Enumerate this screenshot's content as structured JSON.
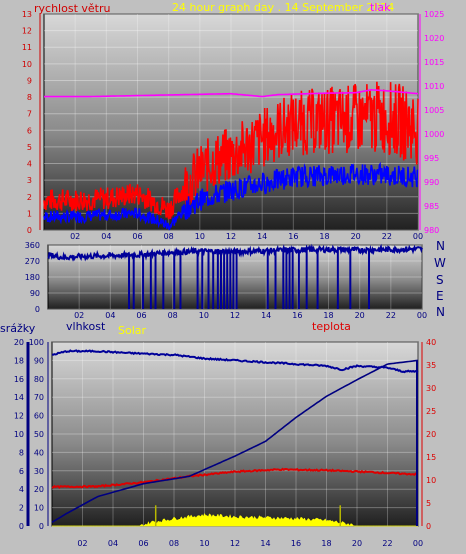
{
  "header": {
    "title": "24 hour graph day . 14 September 2024",
    "left_label": "rychlost větru",
    "right_label": "tlak"
  },
  "middle": {
    "compass": [
      "N",
      "W",
      "S",
      "E",
      "N"
    ]
  },
  "bottom_header": {
    "rain_label": "srážky",
    "humidity_label": "vlhkost",
    "solar_label": "Solar",
    "temp_label": "teplota"
  },
  "colors": {
    "wind_gust": "#ff0000",
    "wind_avg": "#0000ff",
    "pressure": "#ff00ff",
    "direction": "#000099",
    "humidity": "#000099",
    "temperature": "#dd0000",
    "rain": "#000080",
    "solar": "#ffff00",
    "title": "#ffff00"
  },
  "chart_data": [
    {
      "type": "line",
      "name": "wind-pressure",
      "x_ticks": [
        "02",
        "04",
        "06",
        "08",
        "10",
        "12",
        "14",
        "16",
        "18",
        "20",
        "22",
        "00"
      ],
      "left_ticks": [
        "0",
        "1",
        "2",
        "3",
        "4",
        "5",
        "6",
        "7",
        "8",
        "9",
        "10",
        "11",
        "12",
        "13"
      ],
      "right_ticks": [
        "980",
        "985",
        "990",
        "995",
        "1000",
        "1005",
        "1010",
        "1015",
        "1020",
        "1025"
      ],
      "ylim_left": [
        0,
        13
      ],
      "ylim_right": [
        980,
        1025
      ],
      "gust_anchors": [
        [
          0,
          1.8
        ],
        [
          2,
          1.8
        ],
        [
          4,
          1.9
        ],
        [
          6,
          2.2
        ],
        [
          7.5,
          1.5
        ],
        [
          8,
          1.2
        ],
        [
          9,
          2.6
        ],
        [
          10,
          3.5
        ],
        [
          11,
          4.2
        ],
        [
          12,
          4.5
        ],
        [
          13,
          5.0
        ],
        [
          14,
          5.5
        ],
        [
          15,
          6.0
        ],
        [
          16,
          6.4
        ],
        [
          18,
          6.6
        ],
        [
          20,
          6.7
        ],
        [
          22,
          6.8
        ],
        [
          24,
          6.2
        ]
      ],
      "avg_anchors": [
        [
          0,
          0.8
        ],
        [
          2,
          0.8
        ],
        [
          4,
          0.9
        ],
        [
          6,
          1.0
        ],
        [
          7.5,
          0.5
        ],
        [
          8,
          0.2
        ],
        [
          9,
          1.2
        ],
        [
          10,
          1.8
        ],
        [
          11,
          2.1
        ],
        [
          12,
          2.4
        ],
        [
          13,
          2.6
        ],
        [
          14,
          2.8
        ],
        [
          15,
          3.0
        ],
        [
          16,
          3.2
        ],
        [
          18,
          3.3
        ],
        [
          20,
          3.4
        ],
        [
          22,
          3.3
        ],
        [
          24,
          3.2
        ]
      ],
      "pressure_anchors": [
        [
          0,
          1007.8
        ],
        [
          3,
          1007.8
        ],
        [
          6,
          1008.0
        ],
        [
          9,
          1008.2
        ],
        [
          12,
          1008.4
        ],
        [
          14,
          1007.8
        ],
        [
          15,
          1008.2
        ],
        [
          18,
          1008.5
        ],
        [
          20,
          1008.6
        ],
        [
          21,
          1009.2
        ],
        [
          22,
          1009.0
        ],
        [
          24,
          1008.4
        ]
      ]
    },
    {
      "type": "line",
      "name": "wind-direction",
      "x_ticks": [
        "02",
        "04",
        "06",
        "08",
        "10",
        "12",
        "14",
        "16",
        "18",
        "20",
        "22",
        "00"
      ],
      "y_ticks": [
        "0",
        "90",
        "180",
        "270",
        "360"
      ],
      "ylim": [
        0,
        360
      ],
      "base_anchors": [
        [
          0,
          305
        ],
        [
          1,
          290
        ],
        [
          2,
          295
        ],
        [
          4,
          300
        ],
        [
          6,
          305
        ],
        [
          8,
          320
        ],
        [
          10,
          325
        ],
        [
          12,
          322
        ],
        [
          14,
          328
        ],
        [
          16,
          332
        ],
        [
          18,
          335
        ],
        [
          20,
          332
        ],
        [
          22,
          335
        ],
        [
          24,
          338
        ]
      ],
      "drops": [
        5.2,
        5.5,
        6.1,
        6.6,
        6.9,
        7.4,
        8.1,
        8.5,
        9.6,
        9.9,
        10.3,
        10.6,
        10.9,
        11.1,
        11.3,
        11.5,
        11.7,
        11.9,
        12.1,
        14.1,
        14.6,
        15.1,
        15.3,
        15.5,
        15.7,
        16.1,
        16.6,
        17.3,
        18.6,
        19.4,
        20.6
      ]
    },
    {
      "type": "line",
      "name": "humidity-temperature-rain-solar",
      "x_ticks": [
        "02",
        "04",
        "06",
        "08",
        "10",
        "12",
        "14",
        "16",
        "18",
        "20",
        "22",
        "00"
      ],
      "left_ticks": [
        "0",
        "10",
        "20",
        "30",
        "40",
        "50",
        "60",
        "70",
        "80",
        "90",
        "100"
      ],
      "rain_ticks": [
        "0",
        "2",
        "4",
        "6",
        "8",
        "10",
        "12",
        "14",
        "16",
        "18",
        "20"
      ],
      "right_ticks": [
        "0",
        "5",
        "10",
        "15",
        "20",
        "25",
        "30",
        "35",
        "40"
      ],
      "ylim_left": [
        0,
        100
      ],
      "ylim_right": [
        0,
        40
      ],
      "humidity_anchors": [
        [
          0,
          93
        ],
        [
          1,
          95
        ],
        [
          3,
          95
        ],
        [
          5,
          94
        ],
        [
          8,
          93
        ],
        [
          10,
          91
        ],
        [
          12,
          90
        ],
        [
          14,
          89
        ],
        [
          16,
          88
        ],
        [
          18,
          87
        ],
        [
          19,
          85
        ],
        [
          20,
          87
        ],
        [
          22,
          86
        ],
        [
          23,
          84
        ],
        [
          24,
          84
        ]
      ],
      "temperature_anchors": [
        [
          0,
          8.5
        ],
        [
          3,
          8.6
        ],
        [
          6,
          9.5
        ],
        [
          9,
          10.8
        ],
        [
          12,
          11.8
        ],
        [
          15,
          12.3
        ],
        [
          18,
          12.1
        ],
        [
          21,
          11.7
        ],
        [
          24,
          11.2
        ]
      ],
      "rain_anchors": [
        [
          0,
          0.4
        ],
        [
          1,
          1.4
        ],
        [
          3,
          3.2
        ],
        [
          6,
          4.6
        ],
        [
          9,
          5.4
        ],
        [
          12,
          7.6
        ],
        [
          14,
          9.2
        ],
        [
          16,
          11.8
        ],
        [
          18,
          14.1
        ],
        [
          20,
          15.9
        ],
        [
          22,
          17.6
        ],
        [
          24,
          18.0
        ]
      ],
      "solar_anchors": [
        [
          0,
          0
        ],
        [
          5.8,
          0
        ],
        [
          6.5,
          0.8
        ],
        [
          8,
          1.6
        ],
        [
          10,
          2.4
        ],
        [
          12,
          2.0
        ],
        [
          14,
          1.8
        ],
        [
          16,
          1.6
        ],
        [
          18,
          1.2
        ],
        [
          19.5,
          0.4
        ],
        [
          20,
          0
        ],
        [
          24,
          0
        ]
      ],
      "solar_spikes": [
        6.8,
        18.9
      ]
    }
  ]
}
